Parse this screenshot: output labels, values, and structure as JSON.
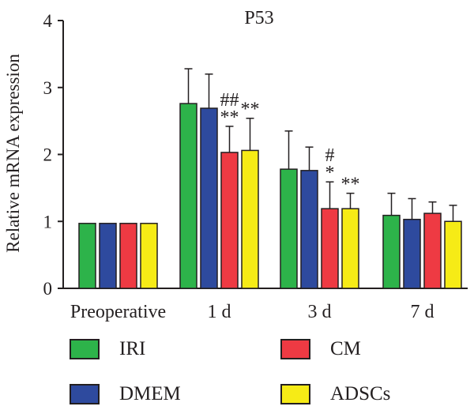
{
  "chart_data": {
    "type": "bar",
    "title": "P53",
    "ylabel": "Relative mRNA expression",
    "xlabel": "",
    "ylim": [
      0,
      4
    ],
    "yticks": [
      "0",
      "1",
      "2",
      "3",
      "4"
    ],
    "categories": [
      "Preoperative",
      "1 d",
      "3 d",
      "7 d"
    ],
    "series": [
      {
        "name": "IRI",
        "color": "#2db34a",
        "values": [
          0.97,
          2.76,
          1.78,
          1.09
        ],
        "errors": [
          0,
          0.52,
          0.57,
          0.33
        ]
      },
      {
        "name": "DMEM",
        "color": "#2e4a9e",
        "values": [
          0.97,
          2.69,
          1.76,
          1.03
        ],
        "errors": [
          0,
          0.51,
          0.35,
          0.31
        ]
      },
      {
        "name": "CM",
        "color": "#ee3a43",
        "values": [
          0.97,
          2.03,
          1.19,
          1.12
        ],
        "errors": [
          0,
          0.39,
          0.4,
          0.17
        ]
      },
      {
        "name": "ADSCs",
        "color": "#f6eb16",
        "values": [
          0.97,
          2.06,
          1.19,
          1.0
        ],
        "errors": [
          0,
          0.48,
          0.23,
          0.24
        ]
      }
    ],
    "annotations": [
      {
        "category": 1,
        "series": 2,
        "lines": [
          "##",
          "**"
        ]
      },
      {
        "category": 1,
        "series": 3,
        "lines": [
          "**"
        ]
      },
      {
        "category": 2,
        "series": 2,
        "lines": [
          "#",
          "*"
        ]
      },
      {
        "category": 2,
        "series": 3,
        "lines": [
          "**"
        ]
      }
    ],
    "legend": [
      "IRI",
      "DMEM",
      "CM",
      "ADSCs"
    ],
    "legend_position": "bottom",
    "grid": false
  }
}
